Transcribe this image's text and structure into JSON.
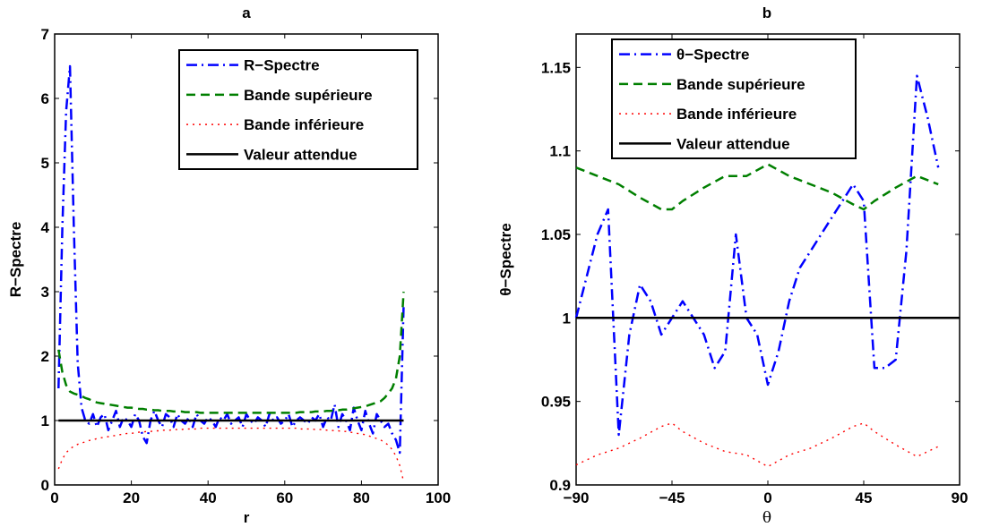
{
  "chart_data": [
    {
      "type": "line",
      "title": "a",
      "xlabel": "r",
      "ylabel": "R−Spectre",
      "xlim": [
        0,
        100
      ],
      "ylim": [
        0,
        7
      ],
      "xticks": [
        0,
        20,
        40,
        60,
        80,
        100
      ],
      "yticks": [
        0,
        1,
        2,
        3,
        4,
        5,
        6,
        7
      ],
      "legend_position": "top-right",
      "series": [
        {
          "name": "R−Spectre",
          "color": "#0000ff",
          "style": "dashdot",
          "x": [
            1,
            2,
            3,
            4,
            5,
            6,
            7,
            8,
            9,
            10,
            11,
            12,
            13,
            14,
            15,
            16,
            17,
            18,
            19,
            20,
            21,
            22,
            23,
            24,
            25,
            26,
            27,
            28,
            29,
            30,
            31,
            32,
            33,
            34,
            35,
            36,
            37,
            38,
            39,
            40,
            41,
            42,
            43,
            44,
            45,
            46,
            47,
            48,
            49,
            50,
            51,
            52,
            53,
            54,
            55,
            56,
            57,
            58,
            59,
            60,
            61,
            62,
            63,
            64,
            65,
            66,
            67,
            68,
            69,
            70,
            71,
            72,
            73,
            74,
            75,
            76,
            77,
            78,
            79,
            80,
            81,
            82,
            83,
            84,
            85,
            86,
            87,
            88,
            89,
            90,
            91
          ],
          "y": [
            1.5,
            4.0,
            5.8,
            6.5,
            4.0,
            1.9,
            1.2,
            1.0,
            0.95,
            1.1,
            0.9,
            1.05,
            1.1,
            0.85,
            1.0,
            1.15,
            0.9,
            1.05,
            1.0,
            0.9,
            1.1,
            1.0,
            0.75,
            0.65,
            1.0,
            1.15,
            1.0,
            0.9,
            1.1,
            1.05,
            0.9,
            1.1,
            1.0,
            0.95,
            1.05,
            0.9,
            1.1,
            1.0,
            0.95,
            1.05,
            1.0,
            0.9,
            1.05,
            1.0,
            1.1,
            0.95,
            1.0,
            1.05,
            0.9,
            1.1,
            1.0,
            0.95,
            1.05,
            1.0,
            0.9,
            1.1,
            1.0,
            1.05,
            0.95,
            1.0,
            1.1,
            0.9,
            1.0,
            1.05,
            1.0,
            0.95,
            1.05,
            1.0,
            1.1,
            0.9,
            1.05,
            1.0,
            1.25,
            0.9,
            1.1,
            1.0,
            0.85,
            1.2,
            1.0,
            0.85,
            1.15,
            0.95,
            0.8,
            1.1,
            1.0,
            0.9,
            0.95,
            0.8,
            0.7,
            0.5,
            2.8
          ]
        },
        {
          "name": "Bande supérieure",
          "color": "#007f00",
          "style": "dashed",
          "x": [
            1,
            2,
            3,
            4,
            5,
            6,
            7,
            8,
            9,
            10,
            11,
            12,
            13,
            14,
            15,
            16,
            17,
            18,
            19,
            20,
            21,
            22,
            23,
            24,
            25,
            26,
            27,
            28,
            29,
            30,
            31,
            32,
            33,
            34,
            35,
            36,
            37,
            38,
            39,
            40,
            41,
            42,
            43,
            44,
            45,
            46,
            47,
            48,
            49,
            50,
            51,
            52,
            53,
            54,
            55,
            56,
            57,
            58,
            59,
            60,
            61,
            62,
            63,
            64,
            65,
            66,
            67,
            68,
            69,
            70,
            71,
            72,
            73,
            74,
            75,
            76,
            77,
            78,
            79,
            80,
            81,
            82,
            83,
            84,
            85,
            86,
            87,
            88,
            89,
            90,
            91
          ],
          "y": [
            2.1,
            1.75,
            1.55,
            1.45,
            1.42,
            1.4,
            1.38,
            1.35,
            1.33,
            1.3,
            1.28,
            1.27,
            1.26,
            1.25,
            1.24,
            1.23,
            1.22,
            1.21,
            1.2,
            1.2,
            1.19,
            1.18,
            1.18,
            1.17,
            1.17,
            1.16,
            1.16,
            1.15,
            1.15,
            1.15,
            1.14,
            1.14,
            1.14,
            1.13,
            1.13,
            1.13,
            1.13,
            1.12,
            1.12,
            1.12,
            1.12,
            1.12,
            1.12,
            1.12,
            1.12,
            1.12,
            1.12,
            1.12,
            1.12,
            1.12,
            1.12,
            1.12,
            1.12,
            1.12,
            1.12,
            1.12,
            1.12,
            1.12,
            1.12,
            1.12,
            1.12,
            1.12,
            1.12,
            1.13,
            1.13,
            1.13,
            1.13,
            1.14,
            1.14,
            1.14,
            1.15,
            1.15,
            1.16,
            1.16,
            1.17,
            1.17,
            1.18,
            1.19,
            1.2,
            1.21,
            1.22,
            1.24,
            1.26,
            1.28,
            1.3,
            1.35,
            1.42,
            1.5,
            1.65,
            2.0,
            3.0
          ]
        },
        {
          "name": "Bande inférieure",
          "color": "#ff0000",
          "style": "dotted",
          "x": [
            1,
            2,
            3,
            4,
            5,
            6,
            7,
            8,
            9,
            10,
            11,
            12,
            13,
            14,
            15,
            16,
            17,
            18,
            19,
            20,
            21,
            22,
            23,
            24,
            25,
            26,
            27,
            28,
            29,
            30,
            31,
            32,
            33,
            34,
            35,
            36,
            37,
            38,
            39,
            40,
            41,
            42,
            43,
            44,
            45,
            46,
            47,
            48,
            49,
            50,
            51,
            52,
            53,
            54,
            55,
            56,
            57,
            58,
            59,
            60,
            61,
            62,
            63,
            64,
            65,
            66,
            67,
            68,
            69,
            70,
            71,
            72,
            73,
            74,
            75,
            76,
            77,
            78,
            79,
            80,
            81,
            82,
            83,
            84,
            85,
            86,
            87,
            88,
            89,
            90,
            91
          ],
          "y": [
            0.25,
            0.4,
            0.5,
            0.56,
            0.6,
            0.63,
            0.65,
            0.67,
            0.69,
            0.7,
            0.72,
            0.73,
            0.74,
            0.75,
            0.76,
            0.77,
            0.78,
            0.79,
            0.8,
            0.8,
            0.81,
            0.82,
            0.82,
            0.83,
            0.83,
            0.84,
            0.84,
            0.85,
            0.85,
            0.85,
            0.86,
            0.86,
            0.86,
            0.87,
            0.87,
            0.87,
            0.87,
            0.88,
            0.88,
            0.88,
            0.88,
            0.88,
            0.88,
            0.88,
            0.88,
            0.88,
            0.88,
            0.88,
            0.88,
            0.88,
            0.88,
            0.88,
            0.88,
            0.88,
            0.88,
            0.88,
            0.88,
            0.88,
            0.88,
            0.88,
            0.88,
            0.88,
            0.88,
            0.87,
            0.87,
            0.87,
            0.87,
            0.86,
            0.86,
            0.86,
            0.85,
            0.85,
            0.84,
            0.84,
            0.83,
            0.83,
            0.82,
            0.81,
            0.8,
            0.79,
            0.78,
            0.76,
            0.74,
            0.72,
            0.7,
            0.66,
            0.62,
            0.55,
            0.45,
            0.3,
            0.05
          ]
        },
        {
          "name": "Valeur attendue",
          "color": "#000000",
          "style": "solid",
          "x": [
            1,
            91
          ],
          "y": [
            1,
            1
          ]
        }
      ]
    },
    {
      "type": "line",
      "title": "b",
      "xlabel": "θ",
      "ylabel": "θ−Spectre",
      "xlim": [
        -90,
        90
      ],
      "ylim": [
        0.9,
        1.17
      ],
      "xticks": [
        -90,
        -45,
        0,
        45,
        90
      ],
      "yticks": [
        0.9,
        0.95,
        1,
        1.05,
        1.1,
        1.15
      ],
      "ytick_labels": [
        "0.9",
        "0.95",
        "1",
        "1.05",
        "1.1",
        "1.15"
      ],
      "legend_position": "top-left",
      "series": [
        {
          "name": "θ−Spectre",
          "color": "#0000ff",
          "style": "dashdot",
          "x": [
            -90,
            -80,
            -75,
            -70,
            -65,
            -60,
            -55,
            -50,
            -45,
            -40,
            -35,
            -30,
            -25,
            -20,
            -15,
            -10,
            -5,
            0,
            5,
            10,
            15,
            20,
            25,
            30,
            35,
            40,
            45,
            50,
            55,
            60,
            65,
            70,
            75,
            80
          ],
          "y": [
            1.0,
            1.05,
            1.065,
            0.93,
            0.99,
            1.02,
            1.01,
            0.99,
            1.0,
            1.01,
            1.0,
            0.99,
            0.97,
            0.98,
            1.05,
            1.0,
            0.99,
            0.96,
            0.98,
            1.01,
            1.03,
            1.04,
            1.05,
            1.06,
            1.07,
            1.08,
            1.07,
            0.97,
            0.97,
            0.975,
            1.04,
            1.145,
            1.12,
            1.09
          ]
        },
        {
          "name": "Bande supérieure",
          "color": "#007f00",
          "style": "dashed",
          "x": [
            -90,
            -80,
            -70,
            -60,
            -50,
            -45,
            -40,
            -30,
            -20,
            -10,
            0,
            10,
            20,
            30,
            40,
            45,
            50,
            60,
            70,
            80
          ],
          "y": [
            1.09,
            1.085,
            1.08,
            1.072,
            1.065,
            1.065,
            1.07,
            1.078,
            1.085,
            1.085,
            1.092,
            1.085,
            1.08,
            1.075,
            1.068,
            1.065,
            1.07,
            1.078,
            1.085,
            1.08
          ]
        },
        {
          "name": "Bande inférieure",
          "color": "#ff0000",
          "style": "dotted",
          "x": [
            -90,
            -80,
            -70,
            -60,
            -50,
            -45,
            -40,
            -30,
            -20,
            -10,
            0,
            10,
            20,
            30,
            40,
            45,
            50,
            60,
            70,
            80
          ],
          "y": [
            0.912,
            0.918,
            0.922,
            0.928,
            0.935,
            0.937,
            0.932,
            0.925,
            0.92,
            0.918,
            0.911,
            0.918,
            0.922,
            0.928,
            0.935,
            0.937,
            0.932,
            0.924,
            0.917,
            0.923
          ]
        },
        {
          "name": "Valeur attendue",
          "color": "#000000",
          "style": "solid",
          "x": [
            -90,
            90
          ],
          "y": [
            1,
            1
          ]
        }
      ]
    }
  ]
}
